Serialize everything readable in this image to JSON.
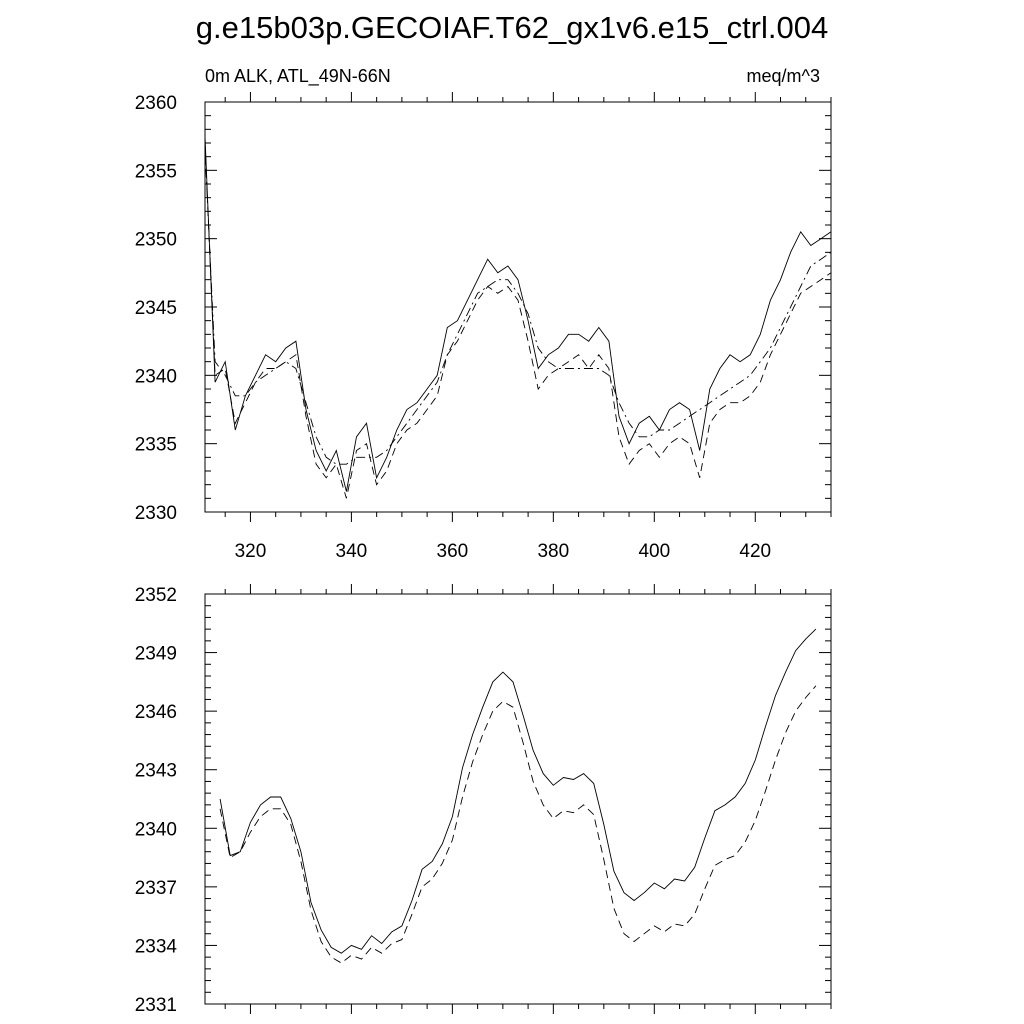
{
  "title": "g.e15b03p.GECOIAF.T62_gx1v6.e15_ctrl.004",
  "colors": {
    "background": "#ffffff",
    "ink": "#000000"
  },
  "chart_data": [
    {
      "type": "line",
      "subtitle_left": "0m ALK, ATL_49N-66N",
      "subtitle_right": "meq/m^3",
      "xlim": [
        311,
        435
      ],
      "ylim": [
        2330,
        2360
      ],
      "x_ticks": [
        320,
        340,
        360,
        380,
        400,
        420
      ],
      "x_tick_labels": [
        "320",
        "340",
        "360",
        "380",
        "400",
        "420"
      ],
      "y_ticks": [
        2330,
        2335,
        2340,
        2345,
        2350,
        2355,
        2360
      ],
      "y_tick_labels": [
        "2330",
        "2335",
        "2340",
        "2345",
        "2350",
        "2355",
        "2360"
      ],
      "grid": false,
      "x": [
        311,
        313,
        315,
        317,
        319,
        321,
        323,
        325,
        327,
        329,
        331,
        333,
        335,
        337,
        339,
        341,
        343,
        345,
        347,
        349,
        351,
        353,
        355,
        357,
        359,
        361,
        363,
        365,
        367,
        369,
        371,
        373,
        375,
        377,
        379,
        381,
        383,
        385,
        387,
        389,
        391,
        393,
        395,
        397,
        399,
        401,
        403,
        405,
        407,
        409,
        411,
        413,
        415,
        417,
        419,
        421,
        423,
        425,
        427,
        429,
        431,
        433,
        435
      ],
      "series": [
        {
          "style": "solid",
          "values": [
            2357.5,
            2339.5,
            2341.0,
            2336.0,
            2338.5,
            2340.0,
            2341.5,
            2341.0,
            2342.0,
            2342.5,
            2337.5,
            2334.5,
            2333.0,
            2334.5,
            2331.5,
            2335.5,
            2336.5,
            2332.5,
            2334.0,
            2336.0,
            2337.5,
            2338.0,
            2339.0,
            2340.0,
            2343.5,
            2344.0,
            2345.5,
            2347.0,
            2348.5,
            2347.5,
            2348.0,
            2347.0,
            2344.0,
            2340.5,
            2341.5,
            2342.0,
            2343.0,
            2343.0,
            2342.5,
            2343.5,
            2342.5,
            2337.0,
            2335.0,
            2336.5,
            2337.0,
            2336.0,
            2337.5,
            2338.0,
            2337.5,
            2334.5,
            2339.0,
            2340.5,
            2341.5,
            2341.0,
            2341.5,
            2343.0,
            2345.5,
            2347.0,
            2349.0,
            2350.5,
            2349.5,
            2350.0,
            2350.5
          ]
        },
        {
          "style": "dashed",
          "values": [
            2357.0,
            2340.0,
            2340.5,
            2336.5,
            2338.0,
            2339.5,
            2340.5,
            2340.5,
            2341.0,
            2341.5,
            2337.0,
            2333.5,
            2332.5,
            2333.5,
            2331.0,
            2334.5,
            2335.0,
            2332.0,
            2333.0,
            2335.0,
            2336.0,
            2336.5,
            2337.5,
            2338.5,
            2341.5,
            2342.5,
            2344.0,
            2345.5,
            2346.5,
            2346.0,
            2346.5,
            2345.5,
            2342.5,
            2339.0,
            2340.0,
            2340.5,
            2341.0,
            2341.5,
            2340.5,
            2341.5,
            2340.5,
            2335.5,
            2333.5,
            2334.5,
            2335.0,
            2334.0,
            2335.0,
            2335.5,
            2335.0,
            2332.5,
            2336.5,
            2337.5,
            2338.0,
            2338.0,
            2338.5,
            2339.5,
            2341.5,
            2343.0,
            2344.5,
            2346.0,
            2346.5,
            2347.0,
            2347.5
          ]
        },
        {
          "style": "dashdot",
          "values": [
            2356.5,
            2341.0,
            2340.0,
            2338.5,
            2338.5,
            2339.5,
            2340.0,
            2340.5,
            2341.0,
            2340.5,
            2338.0,
            2335.5,
            2334.0,
            2333.5,
            2333.5,
            2334.0,
            2334.0,
            2334.0,
            2334.5,
            2335.5,
            2336.5,
            2337.5,
            2338.5,
            2339.5,
            2341.5,
            2343.0,
            2344.5,
            2346.0,
            2346.5,
            2347.0,
            2347.0,
            2346.0,
            2344.5,
            2342.0,
            2341.0,
            2340.5,
            2340.5,
            2340.5,
            2340.5,
            2340.5,
            2340.0,
            2338.0,
            2336.5,
            2335.5,
            2335.5,
            2336.0,
            2336.0,
            2336.5,
            2337.0,
            2337.5,
            2338.0,
            2338.5,
            2339.0,
            2339.5,
            2340.0,
            2341.0,
            2342.0,
            2343.5,
            2345.0,
            2346.5,
            2348.0,
            2348.5,
            2349.0
          ]
        }
      ]
    },
    {
      "type": "line",
      "xlim": [
        311,
        435
      ],
      "ylim": [
        2331,
        2352
      ],
      "x_ticks": [
        320,
        340,
        360,
        380,
        400,
        420
      ],
      "x_tick_labels": [],
      "y_ticks": [
        2331,
        2334,
        2337,
        2340,
        2343,
        2346,
        2349,
        2352
      ],
      "y_tick_labels": [
        "2331",
        "2334",
        "2337",
        "2340",
        "2343",
        "2346",
        "2349",
        "2352"
      ],
      "grid": false,
      "x": [
        314,
        316,
        318,
        320,
        322,
        324,
        326,
        328,
        330,
        332,
        334,
        336,
        338,
        340,
        342,
        344,
        346,
        348,
        350,
        352,
        354,
        356,
        358,
        360,
        362,
        364,
        366,
        368,
        370,
        372,
        374,
        376,
        378,
        380,
        382,
        384,
        386,
        388,
        390,
        392,
        394,
        396,
        398,
        400,
        402,
        404,
        406,
        408,
        410,
        412,
        414,
        416,
        418,
        420,
        422,
        424,
        426,
        428,
        430,
        432
      ],
      "series": [
        {
          "style": "solid",
          "values": [
            2341.5,
            2338.6,
            2338.8,
            2340.3,
            2341.2,
            2341.6,
            2341.6,
            2340.5,
            2338.8,
            2336.2,
            2334.8,
            2333.9,
            2333.6,
            2334.0,
            2333.8,
            2334.5,
            2334.1,
            2334.7,
            2335.0,
            2336.3,
            2337.9,
            2338.3,
            2339.2,
            2340.6,
            2343.1,
            2344.8,
            2346.2,
            2347.5,
            2348.0,
            2347.5,
            2345.8,
            2344.0,
            2342.8,
            2342.2,
            2342.6,
            2342.5,
            2342.8,
            2342.3,
            2340.2,
            2337.8,
            2336.7,
            2336.3,
            2336.7,
            2337.2,
            2336.9,
            2337.4,
            2337.3,
            2338.0,
            2339.5,
            2340.9,
            2341.2,
            2341.6,
            2342.3,
            2343.5,
            2345.2,
            2346.8,
            2348.0,
            2349.1,
            2349.7,
            2350.2
          ]
        },
        {
          "style": "dashed",
          "values": [
            2341.0,
            2338.5,
            2338.8,
            2339.8,
            2340.6,
            2341.0,
            2341.0,
            2340.2,
            2338.3,
            2335.8,
            2334.2,
            2333.4,
            2333.1,
            2333.5,
            2333.3,
            2333.9,
            2333.6,
            2334.1,
            2334.3,
            2335.6,
            2337.0,
            2337.4,
            2338.2,
            2339.4,
            2341.6,
            2343.4,
            2344.8,
            2346.0,
            2346.5,
            2346.2,
            2344.4,
            2342.4,
            2341.2,
            2340.5,
            2340.9,
            2340.8,
            2341.2,
            2340.7,
            2338.4,
            2335.9,
            2334.6,
            2334.2,
            2334.6,
            2335.0,
            2334.7,
            2335.1,
            2335.0,
            2335.6,
            2336.9,
            2338.1,
            2338.4,
            2338.6,
            2339.3,
            2340.4,
            2341.9,
            2343.5,
            2344.9,
            2346.0,
            2346.7,
            2347.3
          ]
        }
      ]
    }
  ]
}
